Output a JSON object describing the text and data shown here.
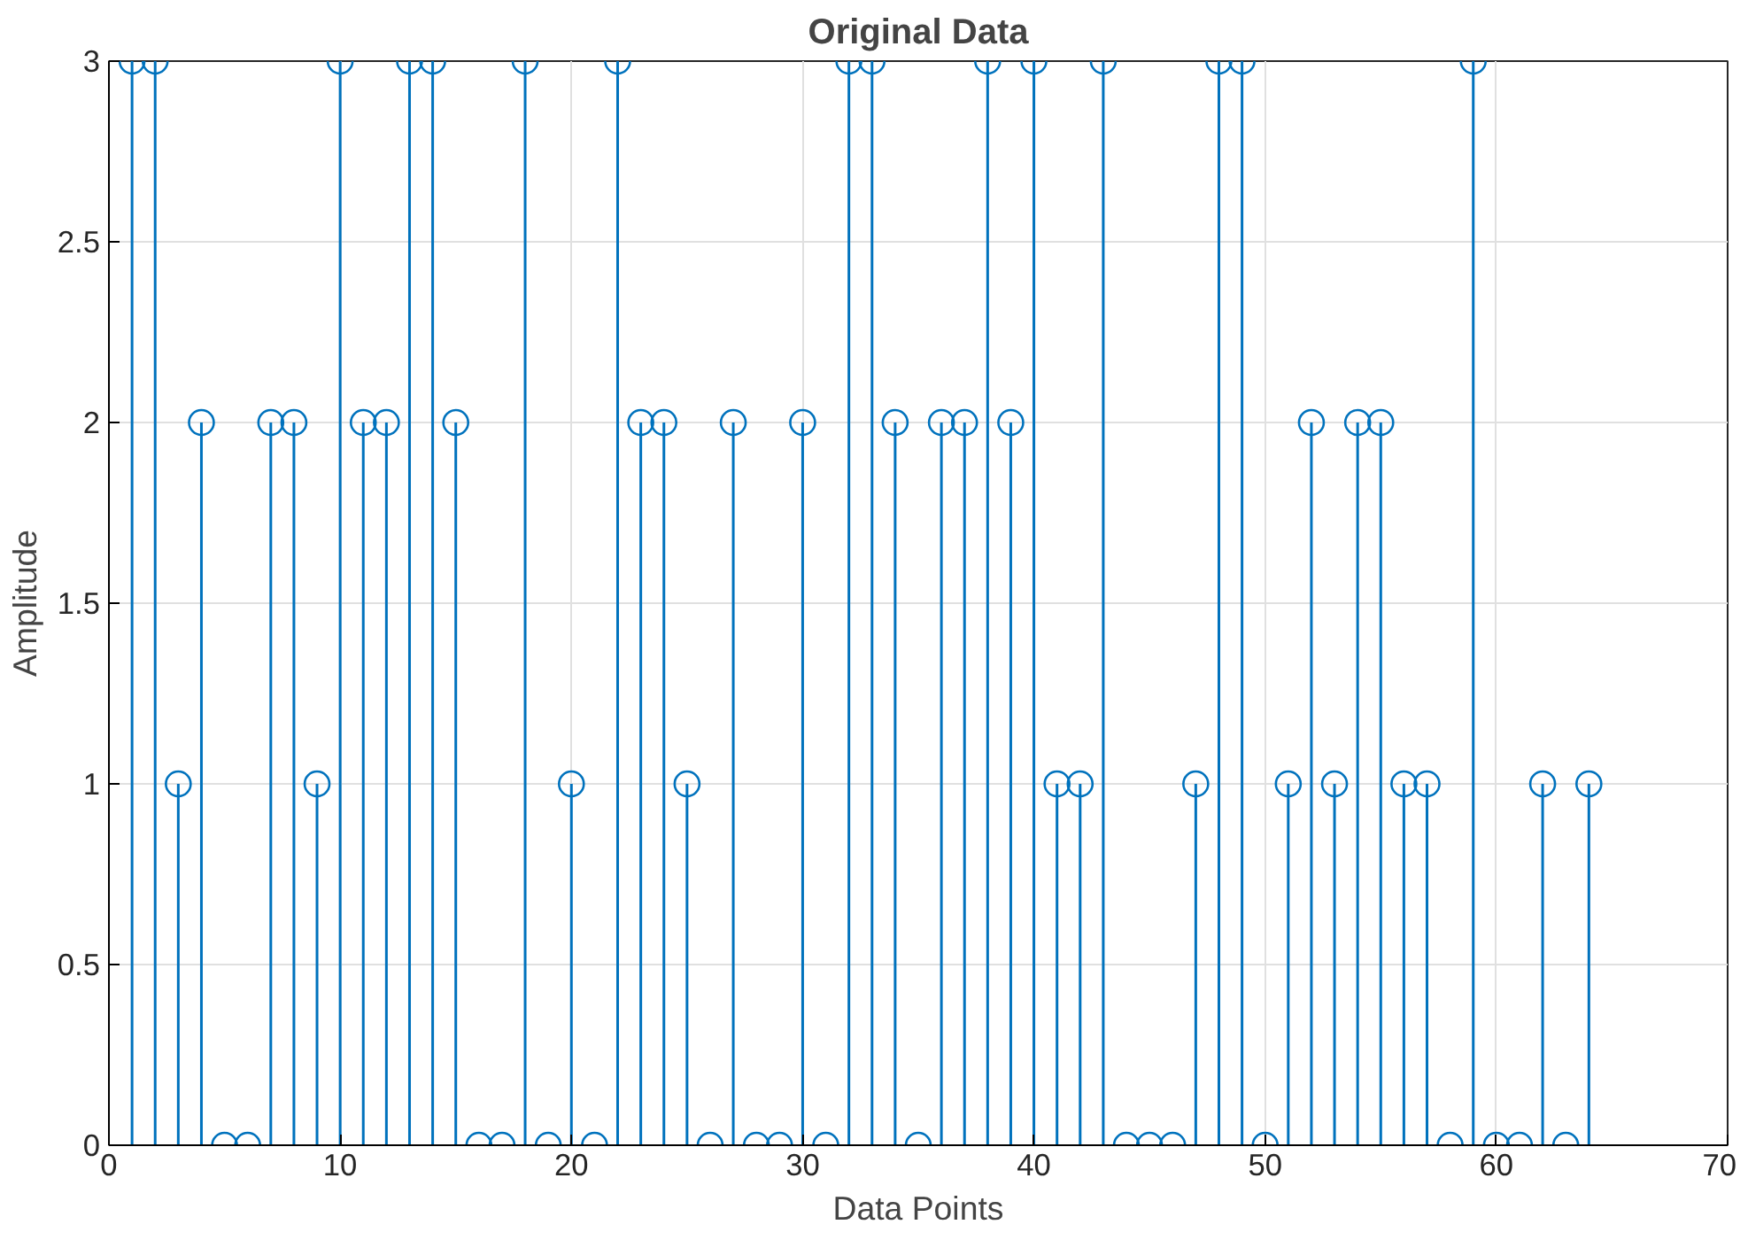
{
  "chart_data": {
    "type": "lollipop",
    "title": "Original Data",
    "xlabel": "Data Points",
    "ylabel": "Amplitude",
    "x": [
      1,
      2,
      3,
      4,
      5,
      6,
      7,
      8,
      9,
      10,
      11,
      12,
      13,
      14,
      15,
      16,
      17,
      18,
      19,
      20,
      21,
      22,
      23,
      24,
      25,
      26,
      27,
      28,
      29,
      30,
      31,
      32,
      33,
      34,
      35,
      36,
      37,
      38,
      39,
      40,
      41,
      42,
      43,
      44,
      45,
      46,
      47,
      48,
      49,
      50,
      51,
      52,
      53,
      54,
      55,
      56,
      57,
      58,
      59,
      60,
      61,
      62,
      63,
      64
    ],
    "series": [
      {
        "color": "#0072bd",
        "values": [
          3,
          3,
          1,
          2,
          0,
          0,
          2,
          2,
          1,
          3,
          2,
          2,
          3,
          3,
          2,
          0,
          0,
          3,
          0,
          1,
          0,
          3,
          2,
          2,
          1,
          0,
          2,
          0,
          0,
          2,
          0,
          3,
          3,
          2,
          0,
          2,
          2,
          3,
          2,
          3,
          1,
          1,
          3,
          0,
          0,
          0,
          1,
          3,
          3,
          0,
          1,
          2,
          1,
          2,
          2,
          1,
          1,
          0,
          3,
          0,
          0,
          1,
          0,
          1
        ]
      }
    ],
    "xlim": [
      0,
      70
    ],
    "xticks": [
      0,
      10,
      20,
      30,
      40,
      50,
      60,
      70
    ],
    "ylim": [
      0,
      3
    ],
    "yticks": [
      0,
      0.5,
      1,
      1.5,
      2,
      2.5,
      3
    ],
    "grid": true,
    "marker": "circle"
  }
}
